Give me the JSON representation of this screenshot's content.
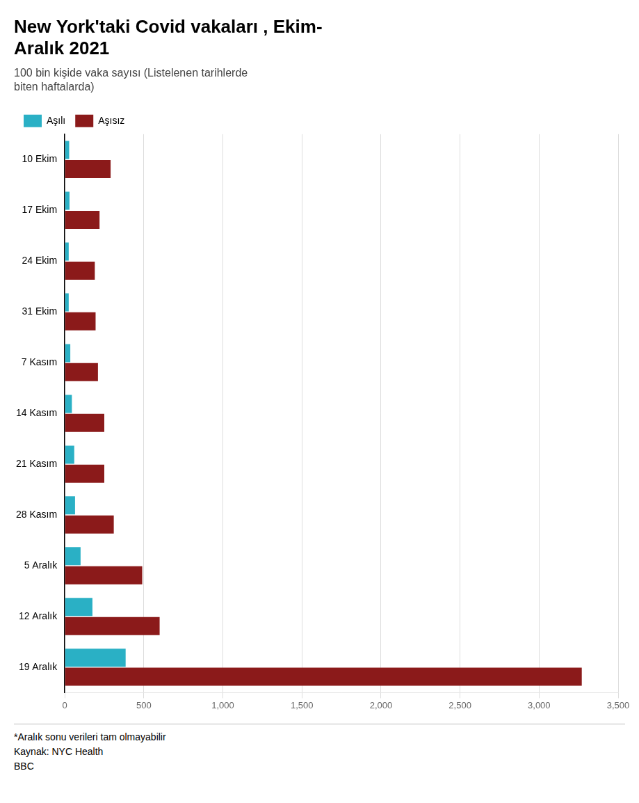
{
  "chart_data": {
    "type": "bar",
    "orientation": "horizontal",
    "title": "New York'taki Covid vakaları , Ekim-\nAralık 2021",
    "subtitle": "100 bin kişide vaka sayısı (Listelenen tarihlerde\nbiten haftalarda)",
    "annotations": [
      "*Aralık sonu verileri tam olmayabilir",
      "Kaynak: NYC Health",
      "BBC"
    ],
    "categories": [
      "10 Ekim",
      "17 Ekim",
      "24 Ekim",
      "31 Ekim",
      "7 Kasım",
      "14 Kasım",
      "21 Kasım",
      "28 Kasım",
      "5 Aralık",
      "12 Aralık",
      "19 Aralık"
    ],
    "series": [
      {
        "name": "Aşılı",
        "color": "#2ab0c5",
        "values": [
          28,
          30,
          25,
          25,
          35,
          45,
          60,
          65,
          100,
          175,
          385
        ]
      },
      {
        "name": "Aşısız",
        "color": "#8b1a1a",
        "values": [
          290,
          220,
          190,
          195,
          210,
          250,
          250,
          310,
          490,
          600,
          3270
        ]
      }
    ],
    "xlim": [
      0,
      3500
    ],
    "xticks": [
      0,
      500,
      {
        "value": 1000,
        "label": "1,000"
      },
      {
        "value": 1500,
        "label": "1,500"
      },
      {
        "value": 2000,
        "label": "2,000"
      },
      {
        "value": 2500,
        "label": "2,500"
      },
      {
        "value": 3000,
        "label": "3,000"
      },
      {
        "value": 3500,
        "label": "3,500"
      }
    ],
    "grid": true,
    "legend": "top"
  }
}
